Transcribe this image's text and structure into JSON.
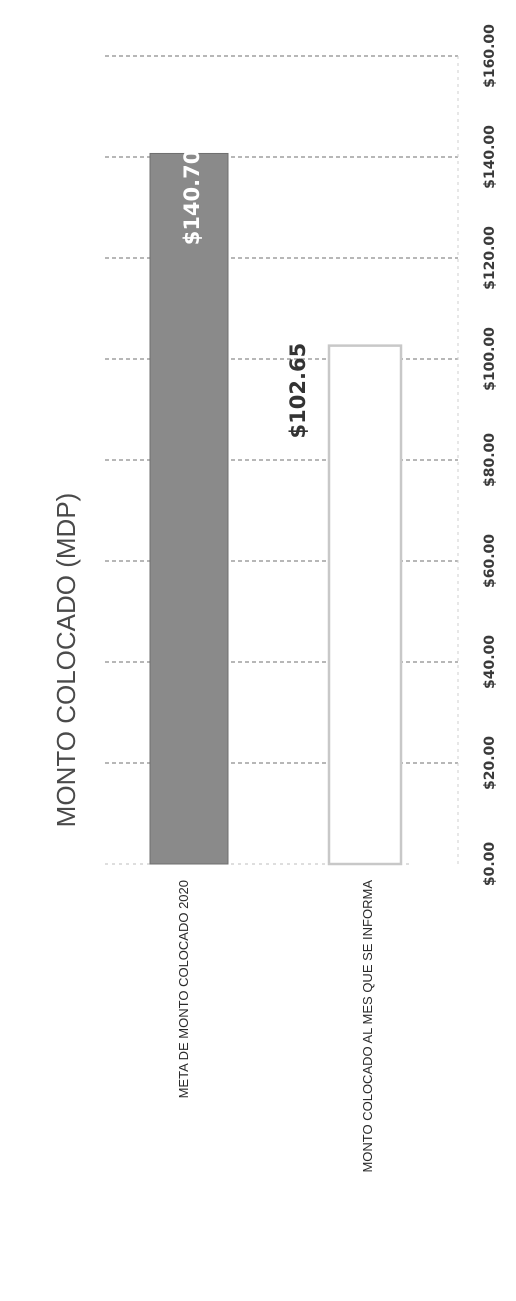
{
  "chart_data": {
    "type": "bar",
    "orientation": "horizontal",
    "title": "MONTO COLOCADO (MDP)",
    "categories": [
      "META DE MONTO COLOCADO 2020",
      "MONTO COLOCADO AL MES QUE SE INFORMA"
    ],
    "values": [
      140.7,
      102.65
    ],
    "data_labels": [
      "$140.70",
      "$102.65"
    ],
    "value_axis": {
      "min": 0,
      "max": 160,
      "step": 20,
      "tick_labels": [
        "$0.00",
        "$20.00",
        "$40.00",
        "$60.00",
        "$80.00",
        "$100.00",
        "$120.00",
        "$140.00",
        "$160.00"
      ]
    },
    "grid": true,
    "legend": "none",
    "colors": {
      "bar_1": "#8a8a8a",
      "bar_1_edge": "#6f6f6f",
      "bar_2": "#ffffff",
      "bar_2_edge": "#c8c8c8",
      "grid": "#8c8c8c",
      "label_on_dark": "#ffffff",
      "label_on_light": "#333333"
    }
  }
}
